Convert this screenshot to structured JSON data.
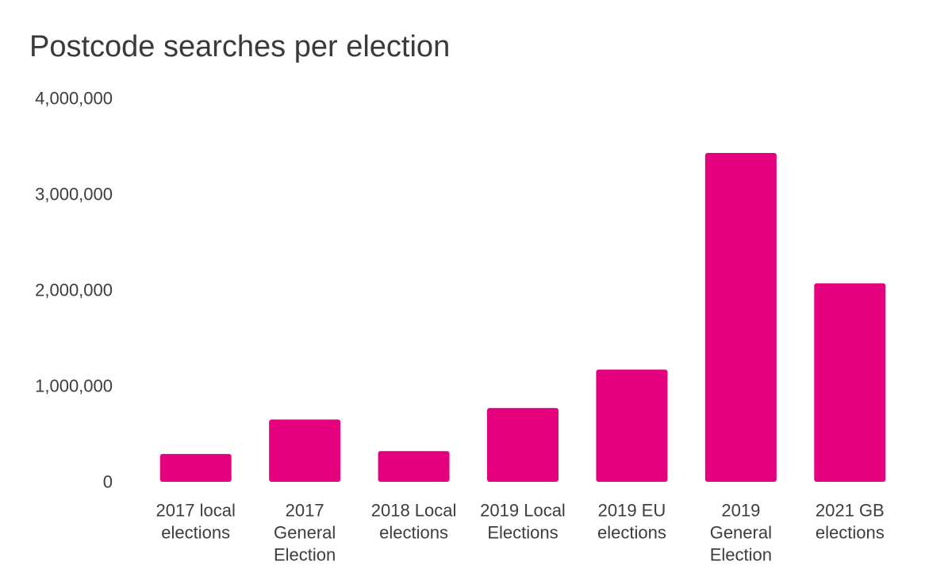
{
  "colors": {
    "bar": "#e5007d",
    "text": "#3d3d3d"
  },
  "chart_data": {
    "type": "bar",
    "title": "Postcode searches per election",
    "xlabel": "",
    "ylabel": "",
    "ylim": [
      0,
      4000000
    ],
    "yticks": [
      0,
      1000000,
      2000000,
      3000000,
      4000000
    ],
    "ytick_labels": [
      "0",
      "1,000,000",
      "2,000,000",
      "3,000,000",
      "4,000,000"
    ],
    "grid": false,
    "categories": [
      "2017 local elections",
      "2017 General Election",
      "2018 Local elections",
      "2019 Local Elections",
      "2019 EU elections",
      "2019 General Election",
      "2021 GB elections"
    ],
    "category_lines": [
      [
        "2017 local",
        "elections"
      ],
      [
        "2017",
        "General",
        "Election"
      ],
      [
        "2018 Local",
        "elections"
      ],
      [
        "2019 Local",
        "Elections"
      ],
      [
        "2019 EU",
        "elections"
      ],
      [
        "2019",
        "General",
        "Election"
      ],
      [
        "2021 GB",
        "elections"
      ]
    ],
    "values": [
      290000,
      650000,
      320000,
      770000,
      1170000,
      3430000,
      2070000
    ]
  }
}
